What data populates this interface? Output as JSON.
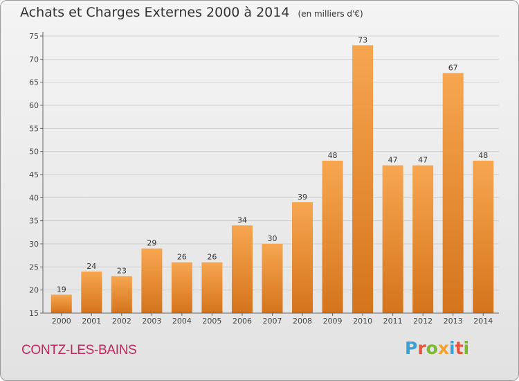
{
  "chart_data": {
    "type": "bar",
    "title": "Achats et Charges Externes 2000 à 2014",
    "subtitle": "(en milliers d'€)",
    "categories": [
      "2000",
      "2001",
      "2002",
      "2003",
      "2004",
      "2005",
      "2006",
      "2007",
      "2008",
      "2009",
      "2010",
      "2011",
      "2012",
      "2013",
      "2014"
    ],
    "values": [
      19,
      24,
      23,
      29,
      26,
      26,
      34,
      30,
      39,
      48,
      73,
      47,
      47,
      67,
      48
    ],
    "ylim": [
      15,
      75
    ],
    "yticks": [
      15,
      20,
      25,
      30,
      35,
      40,
      45,
      50,
      55,
      60,
      65,
      70,
      75
    ],
    "xlabel": "",
    "ylabel": "",
    "grid": true,
    "bar_color": "#f0963c",
    "bar_color_dark": "#d4741c"
  },
  "footer": {
    "commune": "CONTZ-LES-BAINS",
    "brand_letters": [
      "P",
      "r",
      "o",
      "x",
      "i",
      "t",
      "i"
    ],
    "brand_colors": [
      "#3aa0d8",
      "#e8553c",
      "#7cb82f",
      "#f2a12c",
      "#3aa0d8",
      "#e8553c",
      "#7cb82f"
    ]
  }
}
